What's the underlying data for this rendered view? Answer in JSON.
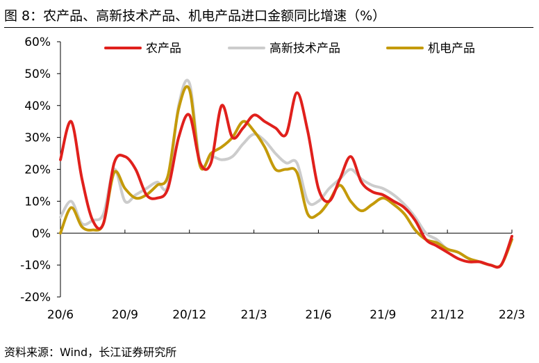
{
  "title": "图 8：农产品、高新技术产品、机电产品进口金额同比增速（%）",
  "source": "资料来源：Wind，长江证券研究所",
  "chart_data": {
    "type": "line",
    "title": "图 8：农产品、高新技术产品、机电产品进口金额同比增速（%）",
    "xlabel": "",
    "ylabel": "",
    "ylim": [
      -20,
      60
    ],
    "yticks": [
      -20,
      -10,
      0,
      10,
      20,
      30,
      40,
      50,
      60
    ],
    "ytick_labels": [
      "-20%",
      "-10%",
      "0%",
      "10%",
      "20%",
      "30%",
      "40%",
      "50%",
      "60%"
    ],
    "xlim": [
      0,
      21
    ],
    "xtick_positions": [
      0,
      3,
      6,
      9,
      12,
      15,
      18,
      21
    ],
    "xtick_labels": [
      "20/6",
      "20/9",
      "20/12",
      "21/3",
      "21/6",
      "21/9",
      "21/12",
      "22/3"
    ],
    "grid": false,
    "legend_position": "top",
    "series": [
      {
        "name": "农产品",
        "color": "#e0201c",
        "x": [
          0,
          0.5,
          1,
          1.5,
          2,
          2.5,
          3,
          3.5,
          4,
          4.5,
          5,
          5.5,
          6,
          6.5,
          7,
          7.5,
          8,
          8.5,
          9,
          9.5,
          10,
          10.5,
          11,
          11.5,
          12,
          12.5,
          13,
          13.5,
          14,
          14.5,
          15,
          15.5,
          16,
          16.5,
          17,
          17.5,
          18,
          18.5,
          19,
          19.5,
          20,
          20.5,
          21
        ],
        "values": [
          23,
          35,
          17,
          4,
          3,
          22,
          24,
          20,
          12,
          11,
          14,
          30,
          37,
          22,
          22,
          40,
          30,
          33,
          37,
          35,
          33,
          31,
          44,
          32,
          14,
          10,
          17,
          24,
          16,
          13,
          12,
          10,
          8,
          4,
          -2,
          -4,
          -6,
          -8,
          -9,
          -9,
          -10,
          -10,
          -1
        ]
      },
      {
        "name": "高新技术产品",
        "color": "#cccccc",
        "x": [
          0,
          0.5,
          1,
          1.5,
          2,
          2.5,
          3,
          3.5,
          4,
          4.5,
          5,
          5.5,
          6,
          6.5,
          7,
          7.5,
          8,
          8.5,
          9,
          9.5,
          10,
          10.5,
          11,
          11.5,
          12,
          12.5,
          13,
          13.5,
          14,
          14.5,
          15,
          15.5,
          16,
          16.5,
          17,
          17.5,
          18,
          18.5,
          19,
          19.5,
          20,
          20.5,
          21
        ],
        "values": [
          5,
          10,
          3,
          4,
          6,
          20,
          10,
          12,
          14,
          16,
          15,
          40,
          47,
          22,
          24,
          23,
          24,
          28,
          31,
          29,
          25,
          22,
          22,
          10,
          10,
          14,
          17,
          20,
          17,
          15,
          14,
          12,
          9,
          5,
          0,
          -2,
          -5,
          -6,
          -8,
          -9,
          -10,
          -10,
          -1
        ]
      },
      {
        "name": "机电产品",
        "color": "#c49a0a",
        "x": [
          0,
          0.5,
          1,
          1.5,
          2,
          2.5,
          3,
          3.5,
          4,
          4.5,
          5,
          5.5,
          6,
          6.5,
          7,
          7.5,
          8,
          8.5,
          9,
          9.5,
          10,
          10.5,
          11,
          11.5,
          12,
          12.5,
          13,
          13.5,
          14,
          14.5,
          15,
          15.5,
          16,
          16.5,
          17,
          17.5,
          18,
          18.5,
          19,
          19.5,
          20,
          20.5,
          21
        ],
        "values": [
          0,
          8,
          2,
          1,
          3,
          19,
          14,
          11,
          12,
          15,
          18,
          39,
          45,
          21,
          25,
          27,
          30,
          35,
          32,
          27,
          20,
          20,
          19,
          6,
          6,
          10,
          15,
          10,
          7,
          9,
          11,
          9,
          6,
          1,
          -2,
          -3,
          -5,
          -6,
          -8,
          -9,
          -10,
          -10,
          -2
        ]
      }
    ]
  }
}
